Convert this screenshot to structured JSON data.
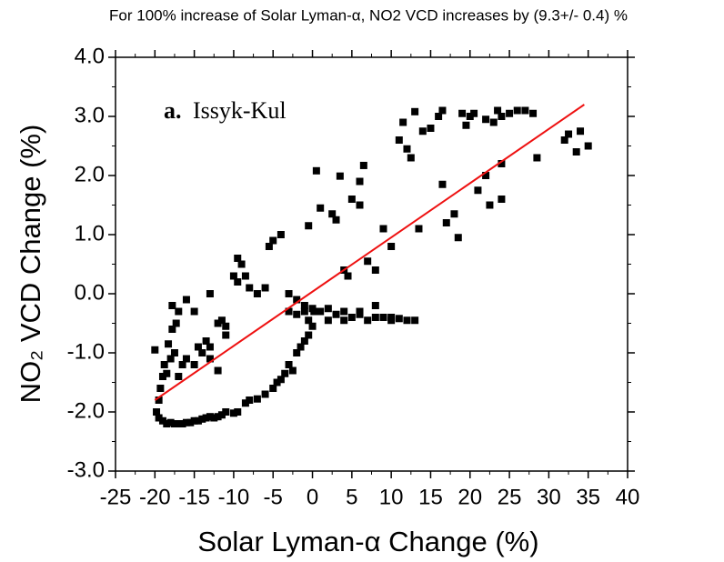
{
  "chart_data": {
    "type": "scatter",
    "title": "For 100% increase of Solar Lyman-α, NO2 VCD increases by (9.3+/- 0.4) %",
    "xlabel": "Solar Lyman-α Change (%)",
    "ylabel": "NO₂ VCD Change (%)",
    "annotation_prefix": "a.",
    "annotation": "Issyk-Kul",
    "color": "#000000",
    "xlim": [
      -25,
      40
    ],
    "ylim": [
      -3,
      4
    ],
    "xticks": [
      -25,
      -20,
      -15,
      -10,
      -5,
      0,
      5,
      10,
      15,
      20,
      25,
      30,
      35,
      40
    ],
    "yticks": [
      {
        "value": 4,
        "label": "4.0"
      },
      {
        "value": 3,
        "label": "3.0"
      },
      {
        "value": 2,
        "label": "2.0"
      },
      {
        "value": 1,
        "label": "1.0"
      },
      {
        "value": 0,
        "label": "0.0"
      },
      {
        "value": -1,
        "label": "-1.0"
      },
      {
        "value": -2,
        "label": "-2.0"
      },
      {
        "value": -3,
        "label": "-3.0"
      }
    ],
    "fit_line": {
      "color": "#ee1111",
      "x": [
        -20,
        34.5
      ],
      "values": [
        -1.8,
        3.2
      ]
    },
    "x": [
      -19.5,
      -19,
      -18.5,
      -18,
      -17.5,
      -17,
      -16.5,
      -16,
      -15.5,
      -15,
      -14.5,
      -14,
      -13.5,
      -13,
      -12.5,
      -12,
      -11.5,
      -11,
      -10,
      -9.5,
      -8.5,
      -8,
      -7,
      -6,
      -5,
      -4.5,
      -4,
      -3.5,
      -3,
      -2.5,
      -2,
      -1.5,
      -1,
      -0.5,
      0,
      -0.5,
      0.2,
      -20,
      -19.8,
      -19.5,
      -19.3,
      -19,
      -18.8,
      -18.5,
      -18.3,
      -18,
      -17.8,
      -17.5,
      -17.8,
      -17.3,
      -17,
      -16.5,
      -16,
      -16,
      -15,
      -14.5,
      -14,
      -13.5,
      -13,
      -13,
      -12,
      -11.5,
      -11,
      -11,
      -10,
      -9.5,
      -9.5,
      -9,
      -8.5,
      -8,
      -7,
      -6,
      -5.5,
      -5,
      -4,
      -3,
      -2,
      -1,
      -13,
      -15,
      -12,
      -17,
      -3,
      -2,
      -1,
      0,
      1,
      2,
      3,
      4,
      5,
      6,
      7,
      8,
      9,
      10,
      11,
      12,
      13,
      4,
      6,
      8,
      10,
      2,
      -0.5,
      0.5,
      1,
      2.5,
      3,
      3.5,
      4,
      4.5,
      5,
      6,
      6.5,
      6,
      7,
      8,
      9,
      10,
      11,
      11.5,
      12,
      12.5,
      13,
      13.5,
      14,
      15,
      16,
      16.5,
      17,
      18,
      18.5,
      19,
      19.5,
      20,
      21,
      22,
      22.5,
      23,
      23.5,
      24,
      24,
      25,
      26,
      27,
      28,
      28.5,
      32,
      32.5,
      33.5,
      34,
      35,
      16.5,
      20.5,
      22,
      24
    ],
    "values": [
      -2.1,
      -2.15,
      -2.2,
      -2.18,
      -2.2,
      -2.2,
      -2.2,
      -2.18,
      -2.18,
      -2.15,
      -2.15,
      -2.12,
      -2.1,
      -2.08,
      -2.1,
      -2.08,
      -2.05,
      -2.0,
      -2.02,
      -2.0,
      -1.85,
      -1.8,
      -1.78,
      -1.7,
      -1.6,
      -1.5,
      -1.45,
      -1.35,
      -1.2,
      -1.3,
      -1.0,
      -0.9,
      -0.8,
      -0.7,
      -0.55,
      -0.45,
      -0.3,
      -0.95,
      -2.0,
      -1.8,
      -1.6,
      -1.4,
      -1.2,
      -1.35,
      -0.85,
      -1.1,
      -0.6,
      -1.0,
      -0.2,
      -0.5,
      -0.3,
      -1.2,
      -0.1,
      -1.1,
      -1.2,
      -0.9,
      -1.0,
      -0.8,
      -0.9,
      -1.1,
      -0.5,
      -0.45,
      -0.55,
      -0.7,
      0.3,
      0.2,
      0.6,
      0.5,
      0.3,
      0.1,
      0.0,
      0.1,
      0.8,
      0.9,
      1.0,
      0.0,
      -0.1,
      -0.2,
      0,
      -0.3,
      -1.3,
      -1.4,
      -0.3,
      -0.35,
      -0.3,
      -0.25,
      -0.3,
      -0.25,
      -0.35,
      -0.3,
      -0.4,
      -0.35,
      -0.45,
      -0.4,
      -0.4,
      -0.45,
      -0.42,
      -0.45,
      -0.45,
      -0.45,
      -0.3,
      -0.2,
      -0.4,
      -0.45,
      1.15,
      2.08,
      1.45,
      1.35,
      1.25,
      1.99,
      0.4,
      0.3,
      1.6,
      1.9,
      2.17,
      1.5,
      0.55,
      0.4,
      1.1,
      0.8,
      2.6,
      2.9,
      2.45,
      2.3,
      3.08,
      1.1,
      2.75,
      2.8,
      3.0,
      3.1,
      1.2,
      1.35,
      0.95,
      3.05,
      2.85,
      3.0,
      1.75,
      2.0,
      1.5,
      2.9,
      3.1,
      2.2,
      1.6,
      3.05,
      3.1,
      3.1,
      3.05,
      2.3,
      2.6,
      2.7,
      2.4,
      2.75,
      2.5,
      1.85,
      3.05,
      2.95,
      3.0
    ]
  }
}
